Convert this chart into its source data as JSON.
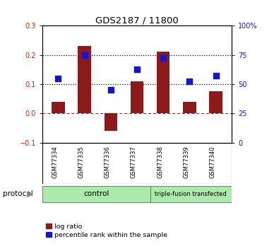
{
  "title": "GDS2187 / 11800",
  "samples": [
    "GSM77334",
    "GSM77335",
    "GSM77336",
    "GSM77337",
    "GSM77338",
    "GSM77339",
    "GSM77340"
  ],
  "log_ratio": [
    0.04,
    0.23,
    -0.06,
    0.11,
    0.21,
    0.04,
    0.075
  ],
  "percentile_rank": [
    0.12,
    0.2,
    0.08,
    0.15,
    0.19,
    0.11,
    0.13
  ],
  "ylim": [
    -0.1,
    0.3
  ],
  "yticks_left": [
    -0.1,
    0.0,
    0.1,
    0.2,
    0.3
  ],
  "yticks_right": [
    0,
    25,
    50,
    75,
    100
  ],
  "hlines_dotted": [
    0.1,
    0.2
  ],
  "hline_dashed": 0.0,
  "bar_color": "#8B1A1A",
  "scatter_color": "#1515CC",
  "bar_width": 0.5,
  "scatter_size": 28,
  "group_boundary": 3.5,
  "protocol_label": "protocol",
  "legend_log_ratio": "log ratio",
  "legend_percentile": "percentile rank within the sample",
  "tick_label_color_left": "#CC2200",
  "tick_label_color_right": "#1515CC",
  "background_color": "#ffffff",
  "plot_bg_color": "#ffffff",
  "label_area_color": "#C8C8C8",
  "ctrl_color": "#AAEAAA",
  "tf_color": "#AAEAAA"
}
